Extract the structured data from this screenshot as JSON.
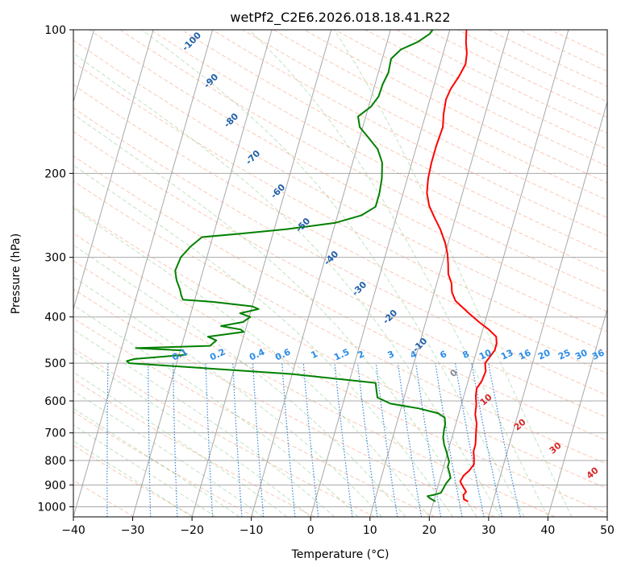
{
  "chart_data": {
    "type": "line",
    "title": "wetPf2_C2E6.2026.018.18.41.R22",
    "xlabel": "Temperature (°C)",
    "ylabel": "Pressure (hPa)",
    "xlim": [
      -40,
      50
    ],
    "ylim": [
      1050,
      100
    ],
    "y_scale": "log",
    "grid": true,
    "x_ticks": [
      -40,
      -30,
      -20,
      -10,
      0,
      10,
      20,
      30,
      40,
      50
    ],
    "y_ticks": [
      1000,
      900,
      800,
      700,
      600,
      500,
      400,
      300,
      200,
      100
    ],
    "series": [
      {
        "role": "temperature",
        "color": "#ff0000",
        "points": [
          [
            25.8,
            975
          ],
          [
            25,
            965
          ],
          [
            24.7,
            945
          ],
          [
            25,
            930
          ],
          [
            24.3,
            910
          ],
          [
            23.5,
            885
          ],
          [
            23.8,
            860
          ],
          [
            24.5,
            840
          ],
          [
            25,
            815
          ],
          [
            24.7,
            790
          ],
          [
            24.3,
            765
          ],
          [
            24.3,
            740
          ],
          [
            24,
            715
          ],
          [
            23.7,
            690
          ],
          [
            23.5,
            670
          ],
          [
            22.8,
            640
          ],
          [
            22.5,
            610
          ],
          [
            22,
            585
          ],
          [
            21.8,
            565
          ],
          [
            22.3,
            545
          ],
          [
            22.5,
            520
          ],
          [
            22,
            500
          ],
          [
            22.5,
            485
          ],
          [
            23,
            470
          ],
          [
            23,
            455
          ],
          [
            22.6,
            440
          ],
          [
            21,
            425
          ],
          [
            19,
            410
          ],
          [
            16.5,
            390
          ],
          [
            14,
            370
          ],
          [
            13,
            355
          ],
          [
            12.5,
            340
          ],
          [
            11.5,
            325
          ],
          [
            11,
            310
          ],
          [
            10.4,
            295
          ],
          [
            9.5,
            280
          ],
          [
            8,
            262
          ],
          [
            6.5,
            248
          ],
          [
            5,
            234
          ],
          [
            4,
            220
          ],
          [
            3.5,
            205
          ],
          [
            3.3,
            190
          ],
          [
            3.3,
            175
          ],
          [
            3.5,
            160
          ],
          [
            3,
            150
          ],
          [
            2.7,
            140
          ],
          [
            3,
            133
          ],
          [
            3.8,
            125
          ],
          [
            4.3,
            118
          ],
          [
            4,
            112
          ],
          [
            3.3,
            106
          ],
          [
            2.8,
            100
          ]
        ]
      },
      {
        "role": "dewpoint",
        "color": "#008000",
        "points": [
          [
            20.3,
            975
          ],
          [
            19.2,
            960
          ],
          [
            18.7,
            950
          ],
          [
            19.6,
            945
          ],
          [
            20.8,
            935
          ],
          [
            21,
            915
          ],
          [
            21.2,
            895
          ],
          [
            21.7,
            870
          ],
          [
            21.3,
            850
          ],
          [
            20.7,
            825
          ],
          [
            20.7,
            805
          ],
          [
            20.2,
            785
          ],
          [
            19.7,
            765
          ],
          [
            19,
            740
          ],
          [
            18.5,
            715
          ],
          [
            18.3,
            690
          ],
          [
            18.2,
            670
          ],
          [
            17.8,
            650
          ],
          [
            16.5,
            637
          ],
          [
            13,
            622
          ],
          [
            8,
            608
          ],
          [
            5.5,
            590
          ],
          [
            5,
            570
          ],
          [
            4.5,
            550
          ],
          [
            -10,
            527
          ],
          [
            -38,
            500
          ],
          [
            -38.5,
            495
          ],
          [
            -37.3,
            490
          ],
          [
            -28.8,
            480
          ],
          [
            -29.6,
            470
          ],
          [
            -37.6,
            465
          ],
          [
            -25.2,
            460
          ],
          [
            -24.4,
            448
          ],
          [
            -26,
            440
          ],
          [
            -20.2,
            430
          ],
          [
            -20.8,
            425
          ],
          [
            -24.3,
            418
          ],
          [
            -20.8,
            410
          ],
          [
            -19.8,
            400
          ],
          [
            -21.7,
            393
          ],
          [
            -18.8,
            385
          ],
          [
            -20,
            380
          ],
          [
            -26.8,
            372
          ],
          [
            -32,
            368
          ],
          [
            -32.5,
            360
          ],
          [
            -33,
            350
          ],
          [
            -34,
            335
          ],
          [
            -34.7,
            320
          ],
          [
            -34.4,
            300
          ],
          [
            -33.3,
            285
          ],
          [
            -31.8,
            272
          ],
          [
            -26,
            268
          ],
          [
            -18,
            262
          ],
          [
            -10,
            254
          ],
          [
            -6,
            245
          ],
          [
            -4,
            235
          ],
          [
            -4,
            220
          ],
          [
            -4.3,
            205
          ],
          [
            -5,
            190
          ],
          [
            -6.4,
            178
          ],
          [
            -8.6,
            168
          ],
          [
            -10.5,
            160
          ],
          [
            -11.3,
            152
          ],
          [
            -9.6,
            145
          ],
          [
            -8.8,
            138
          ],
          [
            -8.7,
            130
          ],
          [
            -8.3,
            123
          ],
          [
            -8.5,
            115
          ],
          [
            -7.3,
            110
          ],
          [
            -4.8,
            106
          ],
          [
            -3.2,
            102
          ],
          [
            -2.9,
            100
          ]
        ]
      }
    ],
    "dry_adiabat_labels": [
      "-100",
      "-90",
      "-80",
      "-70",
      "-60",
      "-50",
      "-40",
      "-30",
      "-20",
      "-10"
    ],
    "mixing_ratio_labels": [
      "0.1",
      "0.2",
      "0.4",
      "0.6",
      "1",
      "1.5",
      "2",
      "3",
      "4",
      "6",
      "8",
      "10",
      "13",
      "16",
      "20",
      "25",
      "30",
      "36"
    ],
    "moist_adiabat_labels": [
      "0",
      "10",
      "20",
      "30",
      "40"
    ],
    "line_colors": {
      "isotherm": "#a8a8a8",
      "isobar": "#a8a8a8",
      "dry_adiabat": "#f4a582",
      "moist_adiabat": "#4daf4a",
      "mixing_ratio": "#1f78d4",
      "dry_adiabat_label": "#1f5fa8",
      "mixing_ratio_label": "#2b8ce6",
      "moist_adiabat_label": "#d62728",
      "lcl_label": "#888888"
    }
  }
}
